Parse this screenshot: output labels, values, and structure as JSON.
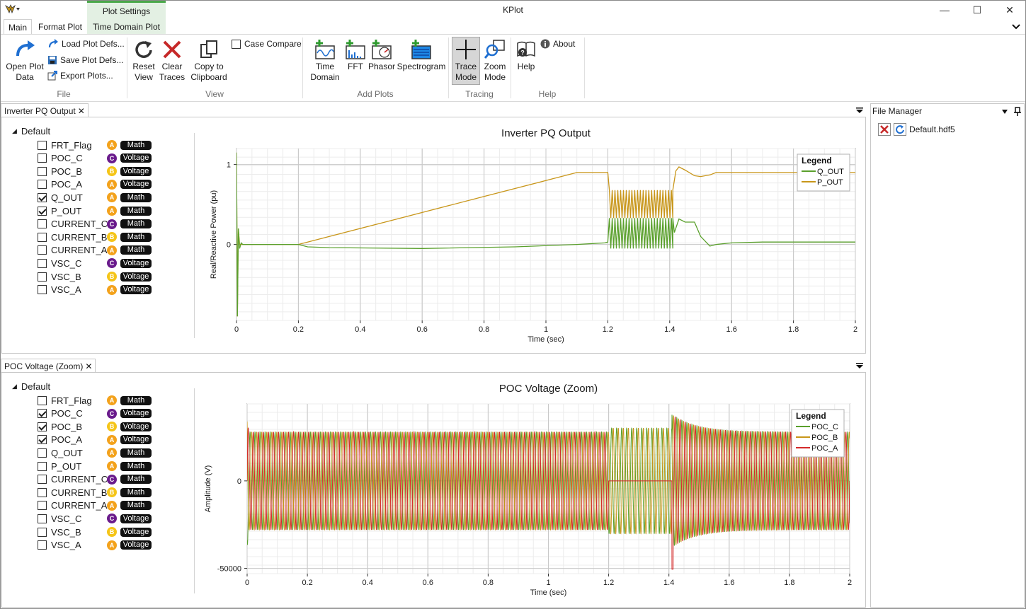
{
  "window": {
    "title": "KPlot",
    "contextual_group": "Plot Settings",
    "minimize": "—",
    "maximize": "☐",
    "close": "✕"
  },
  "ribbon_tabs": [
    {
      "label": "Main"
    },
    {
      "label": "Format Plot"
    },
    {
      "label": "Time Domain Plot"
    }
  ],
  "ribbon": {
    "file": {
      "group": "File",
      "open": "Open Plot\nData",
      "load": "Load Plot Defs...",
      "save": "Save Plot Defs...",
      "export": "Export Plots..."
    },
    "view": {
      "group": "View",
      "reset": "Reset\nView",
      "clear": "Clear\nTraces",
      "copy": "Copy to\nClipboard",
      "case_compare": "Case Compare"
    },
    "add_plots": {
      "group": "Add Plots",
      "time": "Time\nDomain",
      "fft": "FFT",
      "phasor": "Phasor",
      "spectrogram": "Spectrogram"
    },
    "tracing": {
      "group": "Tracing",
      "trace": "Trace\nMode",
      "zoom": "Zoom\nMode"
    },
    "help": {
      "group": "Help",
      "help": "Help",
      "about": "About"
    }
  },
  "panes": [
    {
      "tab": "Inverter PQ Output",
      "tree_root": "Default",
      "signals": [
        {
          "name": "FRT_Flag",
          "checked": false,
          "phase": "A",
          "kind": "Math"
        },
        {
          "name": "POC_C",
          "checked": false,
          "phase": "C",
          "kind": "Voltage"
        },
        {
          "name": "POC_B",
          "checked": false,
          "phase": "B",
          "kind": "Voltage"
        },
        {
          "name": "POC_A",
          "checked": false,
          "phase": "A",
          "kind": "Voltage"
        },
        {
          "name": "Q_OUT",
          "checked": true,
          "phase": "A",
          "kind": "Math"
        },
        {
          "name": "P_OUT",
          "checked": true,
          "phase": "A",
          "kind": "Math"
        },
        {
          "name": "CURRENT_C",
          "checked": false,
          "phase": "C",
          "kind": "Math"
        },
        {
          "name": "CURRENT_B",
          "checked": false,
          "phase": "B",
          "kind": "Math"
        },
        {
          "name": "CURRENT_A",
          "checked": false,
          "phase": "A",
          "kind": "Math"
        },
        {
          "name": "VSC_C",
          "checked": false,
          "phase": "C",
          "kind": "Voltage"
        },
        {
          "name": "VSC_B",
          "checked": false,
          "phase": "B",
          "kind": "Voltage"
        },
        {
          "name": "VSC_A",
          "checked": false,
          "phase": "A",
          "kind": "Voltage"
        }
      ]
    },
    {
      "tab": "POC Voltage (Zoom)",
      "tree_root": "Default",
      "signals": [
        {
          "name": "FRT_Flag",
          "checked": false,
          "phase": "A",
          "kind": "Math"
        },
        {
          "name": "POC_C",
          "checked": true,
          "phase": "C",
          "kind": "Voltage"
        },
        {
          "name": "POC_B",
          "checked": true,
          "phase": "B",
          "kind": "Voltage"
        },
        {
          "name": "POC_A",
          "checked": true,
          "phase": "A",
          "kind": "Voltage"
        },
        {
          "name": "Q_OUT",
          "checked": false,
          "phase": "A",
          "kind": "Math"
        },
        {
          "name": "P_OUT",
          "checked": false,
          "phase": "A",
          "kind": "Math"
        },
        {
          "name": "CURRENT_C",
          "checked": false,
          "phase": "C",
          "kind": "Math"
        },
        {
          "name": "CURRENT_B",
          "checked": false,
          "phase": "B",
          "kind": "Math"
        },
        {
          "name": "CURRENT_A",
          "checked": false,
          "phase": "A",
          "kind": "Math"
        },
        {
          "name": "VSC_C",
          "checked": false,
          "phase": "C",
          "kind": "Voltage"
        },
        {
          "name": "VSC_B",
          "checked": false,
          "phase": "B",
          "kind": "Voltage"
        },
        {
          "name": "VSC_A",
          "checked": false,
          "phase": "A",
          "kind": "Voltage"
        }
      ]
    }
  ],
  "file_manager": {
    "title": "File Manager",
    "files": [
      "Default.hdf5"
    ]
  },
  "chart_data": [
    {
      "type": "line",
      "title": "Inverter PQ Output",
      "xlabel": "Time (sec)",
      "ylabel": "Real/Reactive Power (pu)",
      "xlim": [
        0,
        2
      ],
      "ylim": [
        -0.95,
        1.2
      ],
      "x_ticks": [
        "0",
        "0.2",
        "0.4",
        "0.6",
        "0.8",
        "1",
        "1.2",
        "1.4",
        "1.6",
        "1.8",
        "2"
      ],
      "y_ticks": [
        "1",
        "0"
      ],
      "grid": true,
      "legend_title": "Legend",
      "legend_position": "top-right",
      "series": [
        {
          "name": "Q_OUT",
          "color": "#5aa02c",
          "x": [
            0,
            0.003,
            0.006,
            0.01,
            0.015,
            0.02,
            0.03,
            0.05,
            0.2,
            0.23,
            0.3,
            0.6,
            0.9,
            1.1,
            1.19,
            1.2,
            1.205,
            1.41,
            1.415,
            1.43,
            1.45,
            1.48,
            1.5,
            1.53,
            1.55,
            1.6,
            1.7,
            1.8,
            2.0
          ],
          "y": [
            1.15,
            -0.9,
            0.2,
            -0.05,
            0.02,
            0.0,
            0.0,
            0.0,
            0.0,
            -0.03,
            -0.04,
            -0.05,
            -0.03,
            0.0,
            0.02,
            0.03,
            0.33,
            0.33,
            0.15,
            0.32,
            0.28,
            0.28,
            0.1,
            -0.02,
            0.0,
            0.02,
            0.03,
            0.03,
            0.03
          ]
        },
        {
          "name": "P_OUT",
          "color": "#c8961a",
          "x": [
            0,
            0.003,
            0.006,
            0.01,
            0.02,
            0.2,
            0.5,
            0.8,
            1.1,
            1.19,
            1.2,
            1.205,
            1.41,
            1.42,
            1.43,
            1.45,
            1.48,
            1.5,
            1.53,
            1.55,
            1.6,
            1.8,
            2.0
          ],
          "y": [
            1.15,
            -0.9,
            0.2,
            0.0,
            0.0,
            0.0,
            0.3,
            0.6,
            0.9,
            0.9,
            0.9,
            0.68,
            0.68,
            0.92,
            0.97,
            0.93,
            0.86,
            0.85,
            0.87,
            0.9,
            0.9,
            0.9,
            0.9
          ]
        }
      ],
      "oscillation": {
        "x_range": [
          1.205,
          1.41
        ],
        "q_band": [
          -0.05,
          0.33
        ],
        "p_band": [
          0.33,
          0.68
        ]
      }
    },
    {
      "type": "line",
      "title": "POC Voltage (Zoom)",
      "xlabel": "Time (sec)",
      "ylabel": "Amplitude (V)",
      "xlim": [
        0,
        2
      ],
      "ylim": [
        -53000,
        44000
      ],
      "x_ticks": [
        "0",
        "0.2",
        "0.4",
        "0.6",
        "0.8",
        "1",
        "1.2",
        "1.4",
        "1.6",
        "1.8",
        "2"
      ],
      "y_ticks": [
        "0",
        "-50000"
      ],
      "grid": true,
      "legend_title": "Legend",
      "legend_position": "top-right",
      "frequency_hz": 60,
      "amplitude_v": 28000,
      "series": [
        {
          "name": "POC_C",
          "color": "#5aa02c"
        },
        {
          "name": "POC_B",
          "color": "#c8961a"
        },
        {
          "name": "POC_A",
          "color": "#d42a2a"
        }
      ],
      "events": {
        "fault_start": 1.2,
        "fault_end": 1.41,
        "post_fault_peak": 38000
      }
    }
  ]
}
